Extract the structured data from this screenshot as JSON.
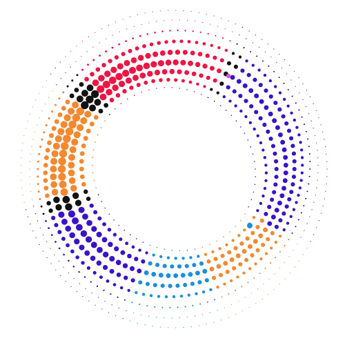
{
  "palette": {
    "background": "#ffffff",
    "red": "#ee1544",
    "indigo": "#3a12c9",
    "orange": "#f4892f",
    "blue": "#1a8fe0",
    "black": "#111111",
    "magenta": "#e24fd6"
  },
  "ring_segments": [
    {
      "from_deg": 30,
      "to_deg": 70,
      "color": "orange"
    },
    {
      "from_deg": 70,
      "to_deg": 108,
      "color": "blue"
    },
    {
      "from_deg": 108,
      "to_deg": 158,
      "color": "indigo"
    },
    {
      "from_deg": 158,
      "to_deg": 166,
      "color": "black"
    },
    {
      "from_deg": 166,
      "to_deg": 215,
      "color": "orange"
    },
    {
      "from_deg": 215,
      "to_deg": 225,
      "color": "black"
    },
    {
      "from_deg": 225,
      "to_deg": 295,
      "color": "red"
    },
    {
      "from_deg": 295,
      "to_deg": 302,
      "color": "black"
    },
    {
      "from_deg": 302,
      "to_deg": 388,
      "color": "indigo"
    }
  ]
}
